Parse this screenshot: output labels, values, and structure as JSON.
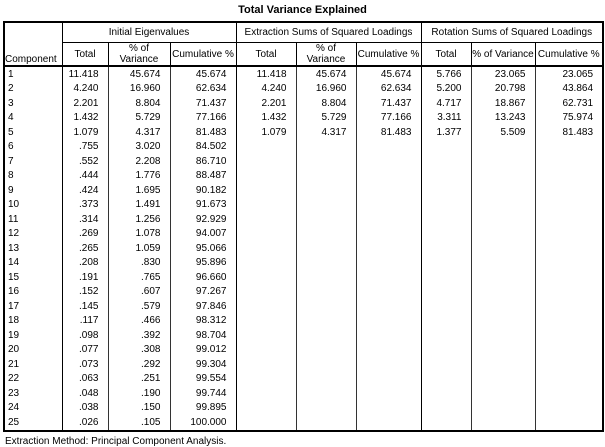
{
  "title": "Total Variance Explained",
  "footer": "Extraction Method: Principal Component Analysis.",
  "table": {
    "component_header": "Component",
    "groups": [
      {
        "label": "Initial Eigenvalues"
      },
      {
        "label": "Extraction Sums of Squared Loadings"
      },
      {
        "label": "Rotation Sums of Squared Loadings"
      }
    ],
    "sub_headers": [
      "Total",
      "% of Variance",
      "Cumulative %"
    ],
    "rows": [
      {
        "component": "1",
        "initial": [
          "11.418",
          "45.674",
          "45.674"
        ],
        "extraction": [
          "11.418",
          "45.674",
          "45.674"
        ],
        "rotation": [
          "5.766",
          "23.065",
          "23.065"
        ]
      },
      {
        "component": "2",
        "initial": [
          "4.240",
          "16.960",
          "62.634"
        ],
        "extraction": [
          "4.240",
          "16.960",
          "62.634"
        ],
        "rotation": [
          "5.200",
          "20.798",
          "43.864"
        ]
      },
      {
        "component": "3",
        "initial": [
          "2.201",
          "8.804",
          "71.437"
        ],
        "extraction": [
          "2.201",
          "8.804",
          "71.437"
        ],
        "rotation": [
          "4.717",
          "18.867",
          "62.731"
        ]
      },
      {
        "component": "4",
        "initial": [
          "1.432",
          "5.729",
          "77.166"
        ],
        "extraction": [
          "1.432",
          "5.729",
          "77.166"
        ],
        "rotation": [
          "3.311",
          "13.243",
          "75.974"
        ]
      },
      {
        "component": "5",
        "initial": [
          "1.079",
          "4.317",
          "81.483"
        ],
        "extraction": [
          "1.079",
          "4.317",
          "81.483"
        ],
        "rotation": [
          "1.377",
          "5.509",
          "81.483"
        ]
      },
      {
        "component": "6",
        "initial": [
          ".755",
          "3.020",
          "84.502"
        ],
        "extraction": [],
        "rotation": []
      },
      {
        "component": "7",
        "initial": [
          ".552",
          "2.208",
          "86.710"
        ],
        "extraction": [],
        "rotation": []
      },
      {
        "component": "8",
        "initial": [
          ".444",
          "1.776",
          "88.487"
        ],
        "extraction": [],
        "rotation": []
      },
      {
        "component": "9",
        "initial": [
          ".424",
          "1.695",
          "90.182"
        ],
        "extraction": [],
        "rotation": []
      },
      {
        "component": "10",
        "initial": [
          ".373",
          "1.491",
          "91.673"
        ],
        "extraction": [],
        "rotation": []
      },
      {
        "component": "11",
        "initial": [
          ".314",
          "1.256",
          "92.929"
        ],
        "extraction": [],
        "rotation": []
      },
      {
        "component": "12",
        "initial": [
          ".269",
          "1.078",
          "94.007"
        ],
        "extraction": [],
        "rotation": []
      },
      {
        "component": "13",
        "initial": [
          ".265",
          "1.059",
          "95.066"
        ],
        "extraction": [],
        "rotation": []
      },
      {
        "component": "14",
        "initial": [
          ".208",
          ".830",
          "95.896"
        ],
        "extraction": [],
        "rotation": []
      },
      {
        "component": "15",
        "initial": [
          ".191",
          ".765",
          "96.660"
        ],
        "extraction": [],
        "rotation": []
      },
      {
        "component": "16",
        "initial": [
          ".152",
          ".607",
          "97.267"
        ],
        "extraction": [],
        "rotation": []
      },
      {
        "component": "17",
        "initial": [
          ".145",
          ".579",
          "97.846"
        ],
        "extraction": [],
        "rotation": []
      },
      {
        "component": "18",
        "initial": [
          ".117",
          ".466",
          "98.312"
        ],
        "extraction": [],
        "rotation": []
      },
      {
        "component": "19",
        "initial": [
          ".098",
          ".392",
          "98.704"
        ],
        "extraction": [],
        "rotation": []
      },
      {
        "component": "20",
        "initial": [
          ".077",
          ".308",
          "99.012"
        ],
        "extraction": [],
        "rotation": []
      },
      {
        "component": "21",
        "initial": [
          ".073",
          ".292",
          "99.304"
        ],
        "extraction": [],
        "rotation": []
      },
      {
        "component": "22",
        "initial": [
          ".063",
          ".251",
          "99.554"
        ],
        "extraction": [],
        "rotation": []
      },
      {
        "component": "23",
        "initial": [
          ".048",
          ".190",
          "99.744"
        ],
        "extraction": [],
        "rotation": []
      },
      {
        "component": "24",
        "initial": [
          ".038",
          ".150",
          "99.895"
        ],
        "extraction": [],
        "rotation": []
      },
      {
        "component": "25",
        "initial": [
          ".026",
          ".105",
          "100.000"
        ],
        "extraction": [],
        "rotation": []
      }
    ]
  }
}
